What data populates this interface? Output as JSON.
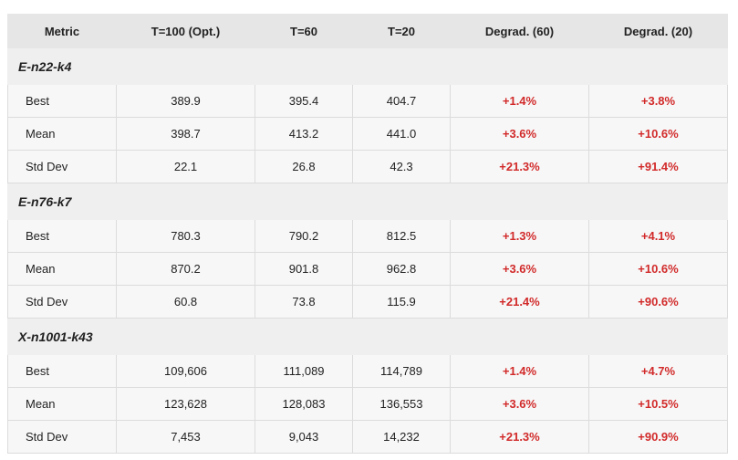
{
  "columns": [
    "Metric",
    "T=100 (Opt.)",
    "T=60",
    "T=20",
    "Degrad. (60)",
    "Degrad. (20)"
  ],
  "groups": [
    {
      "name": "E-n22-k4",
      "rows": [
        {
          "metric": "Best",
          "t100": "389.9",
          "t60": "395.4",
          "t20": "404.7",
          "d60": "+1.4%",
          "d20": "+3.8%"
        },
        {
          "metric": "Mean",
          "t100": "398.7",
          "t60": "413.2",
          "t20": "441.0",
          "d60": "+3.6%",
          "d20": "+10.6%"
        },
        {
          "metric": "Std Dev",
          "t100": "22.1",
          "t60": "26.8",
          "t20": "42.3",
          "d60": "+21.3%",
          "d20": "+91.4%"
        }
      ]
    },
    {
      "name": "E-n76-k7",
      "rows": [
        {
          "metric": "Best",
          "t100": "780.3",
          "t60": "790.2",
          "t20": "812.5",
          "d60": "+1.3%",
          "d20": "+4.1%"
        },
        {
          "metric": "Mean",
          "t100": "870.2",
          "t60": "901.8",
          "t20": "962.8",
          "d60": "+3.6%",
          "d20": "+10.6%"
        },
        {
          "metric": "Std Dev",
          "t100": "60.8",
          "t60": "73.8",
          "t20": "115.9",
          "d60": "+21.4%",
          "d20": "+90.6%"
        }
      ]
    },
    {
      "name": "X-n1001-k43",
      "rows": [
        {
          "metric": "Best",
          "t100": "109,606",
          "t60": "111,089",
          "t20": "114,789",
          "d60": "+1.4%",
          "d20": "+4.7%"
        },
        {
          "metric": "Mean",
          "t100": "123,628",
          "t60": "128,083",
          "t20": "136,553",
          "d60": "+3.6%",
          "d20": "+10.5%"
        },
        {
          "metric": "Std Dev",
          "t100": "7,453",
          "t60": "9,043",
          "t20": "14,232",
          "d60": "+21.3%",
          "d20": "+90.9%"
        }
      ]
    }
  ],
  "colors": {
    "header_bg": "#e6e6e6",
    "group_bg": "#efefef",
    "cell_bg": "#f7f7f7",
    "degradation_text": "#d22a2a"
  }
}
